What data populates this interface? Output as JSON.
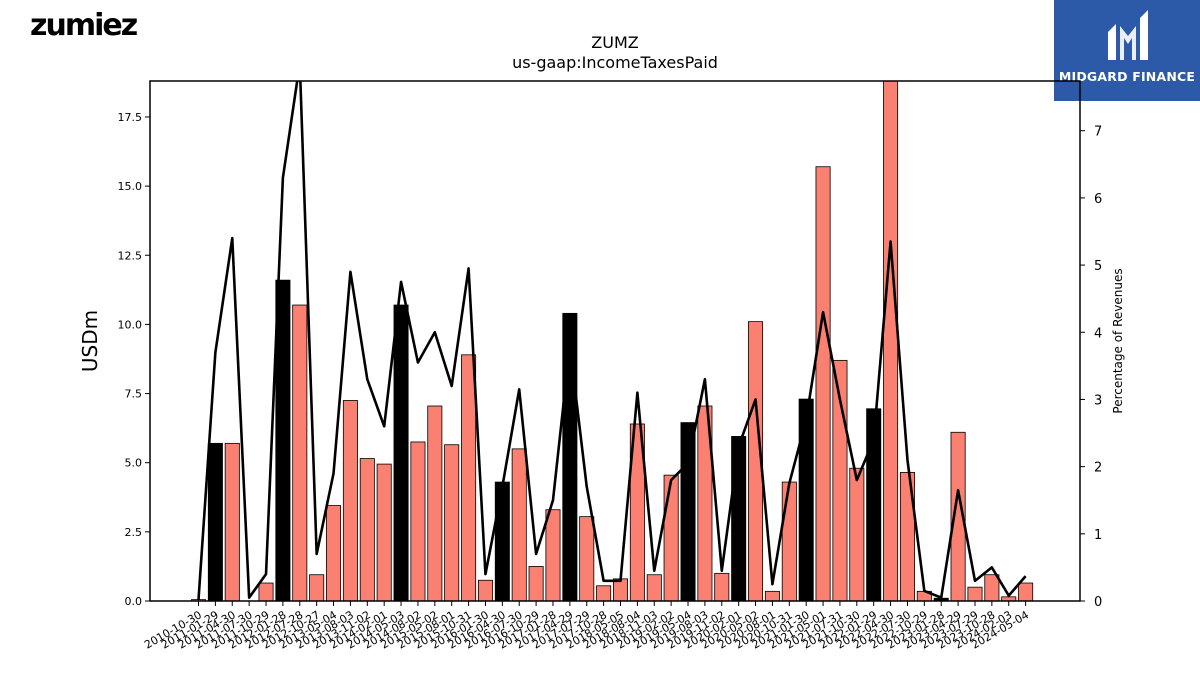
{
  "branding": {
    "left_logo": "zumiez",
    "right_logo": "MIDGARD FINANCE",
    "right_logo_bg": "#2c5aa8"
  },
  "colors": {
    "bar_fill": "#fa8072",
    "bar_highlight_fill": "#000000",
    "bar_edge": "#000000",
    "line": "#000000"
  },
  "chart_data": {
    "type": "bar",
    "title": "ZUMZ",
    "subtitle": "us-gaap:IncomeTaxesPaid",
    "ylabel": "USDm",
    "y2label": "Percentage of Revenues",
    "ylim": [
      0,
      18.8
    ],
    "y2lim": [
      0,
      7.74
    ],
    "yticks": [
      "0.0",
      "2.5",
      "5.0",
      "7.5",
      "10.0",
      "12.5",
      "15.0",
      "17.5"
    ],
    "y2ticks": [
      "0",
      "1",
      "2",
      "3",
      "4",
      "5",
      "6",
      "7"
    ],
    "grid": false,
    "legend": "none",
    "x": [
      "2010-10-30",
      "2011-01-29",
      "2011-04-30",
      "2011-07-30",
      "2011-10-29",
      "2012-01-28",
      "2012-07-28",
      "2012-10-27",
      "2013-05-04",
      "2013-08-03",
      "2013-11-02",
      "2014-02-01",
      "2014-05-03",
      "2014-08-02",
      "2015-05-02",
      "2015-08-01",
      "2015-10-31",
      "2016-01-30",
      "2016-04-30",
      "2016-07-30",
      "2016-10-29",
      "2017-01-28",
      "2017-04-29",
      "2017-07-29",
      "2017-10-28",
      "2018-05-05",
      "2018-08-04",
      "2018-11-03",
      "2019-02-02",
      "2019-05-04",
      "2019-08-03",
      "2019-11-02",
      "2020-02-01",
      "2020-05-02",
      "2020-08-01",
      "2020-10-31",
      "2021-01-30",
      "2021-05-01",
      "2021-07-31",
      "2021-10-30",
      "2022-01-29",
      "2022-04-30",
      "2022-07-30",
      "2022-10-29",
      "2023-01-28",
      "2023-04-29",
      "2023-07-29",
      "2023-10-28",
      "2024-02-03",
      "2024-05-04"
    ],
    "xtick_labels": [
      "2010-10-30",
      "2011-01-29",
      "2011-04-30",
      "2011-07-30",
      "2011-10-29",
      "2012-01-28",
      "2012-07-28",
      "2012-10-27",
      "2013-05-04",
      "2013-08-03",
      "2013-11-02",
      "2014-02-01",
      "2014-05-03",
      "2014-08-02",
      "2015-05-02",
      "2015-08-01",
      "2015-10-31",
      "2016-01-30",
      "2016-04-30",
      "2016-07-30",
      "2016-10-29",
      "2017-01-28",
      "2017-04-29",
      "2017-07-29",
      "2017-10-28",
      "2018-05-05",
      "2018-08-04",
      "2018-11-03",
      "2019-02-02",
      "2019-05-04",
      "2019-08-03",
      "2019-11-02",
      "2020-02-01",
      "2020-05-02",
      "2020-08-01",
      "2020-10-31",
      "2021-01-30",
      "2021-05-01",
      "2021-07-31",
      "2021-10-30",
      "2022-01-29",
      "2022-04-30",
      "2022-07-30",
      "2022-10-29",
      "2023-01-28",
      "2023-04-29",
      "2023-07-29",
      "2023-10-28",
      "2024-02-03",
      "2024-05-04"
    ],
    "highlighted": [
      false,
      true,
      false,
      false,
      false,
      true,
      false,
      false,
      false,
      false,
      false,
      false,
      true,
      false,
      false,
      false,
      false,
      false,
      true,
      false,
      false,
      false,
      true,
      false,
      false,
      false,
      false,
      false,
      false,
      true,
      false,
      false,
      true,
      false,
      false,
      false,
      true,
      false,
      false,
      false,
      true,
      false,
      false,
      false,
      true,
      false,
      false,
      false,
      false,
      false
    ],
    "values": [
      0.05,
      5.7,
      5.7,
      0.0,
      0.65,
      11.6,
      10.7,
      0.95,
      3.45,
      7.25,
      5.15,
      4.95,
      10.7,
      5.75,
      7.05,
      5.65,
      8.9,
      0.75,
      4.3,
      5.5,
      1.25,
      3.3,
      10.4,
      3.05,
      0.55,
      0.8,
      6.4,
      0.95,
      4.55,
      6.45,
      7.05,
      1.0,
      5.95,
      10.1,
      0.35,
      4.3,
      7.3,
      15.7,
      8.7,
      4.8,
      6.95,
      18.8,
      4.65,
      0.35,
      0.1,
      6.1,
      0.5,
      0.95,
      0.15,
      0.65
    ],
    "pct_of_revenues": [
      0.02,
      3.7,
      5.4,
      0.05,
      0.4,
      6.3,
      8.0,
      0.7,
      1.9,
      4.9,
      3.3,
      2.6,
      4.75,
      3.55,
      4.0,
      3.2,
      4.95,
      0.4,
      1.7,
      3.15,
      0.7,
      1.5,
      3.8,
      1.7,
      0.3,
      0.3,
      3.1,
      0.45,
      1.8,
      2.05,
      3.3,
      0.45,
      2.3,
      3.0,
      0.25,
      1.75,
      2.7,
      4.3,
      3.0,
      1.8,
      2.4,
      5.35,
      2.1,
      0.15,
      0.05,
      1.65,
      0.3,
      0.5,
      0.08,
      0.37
    ]
  }
}
